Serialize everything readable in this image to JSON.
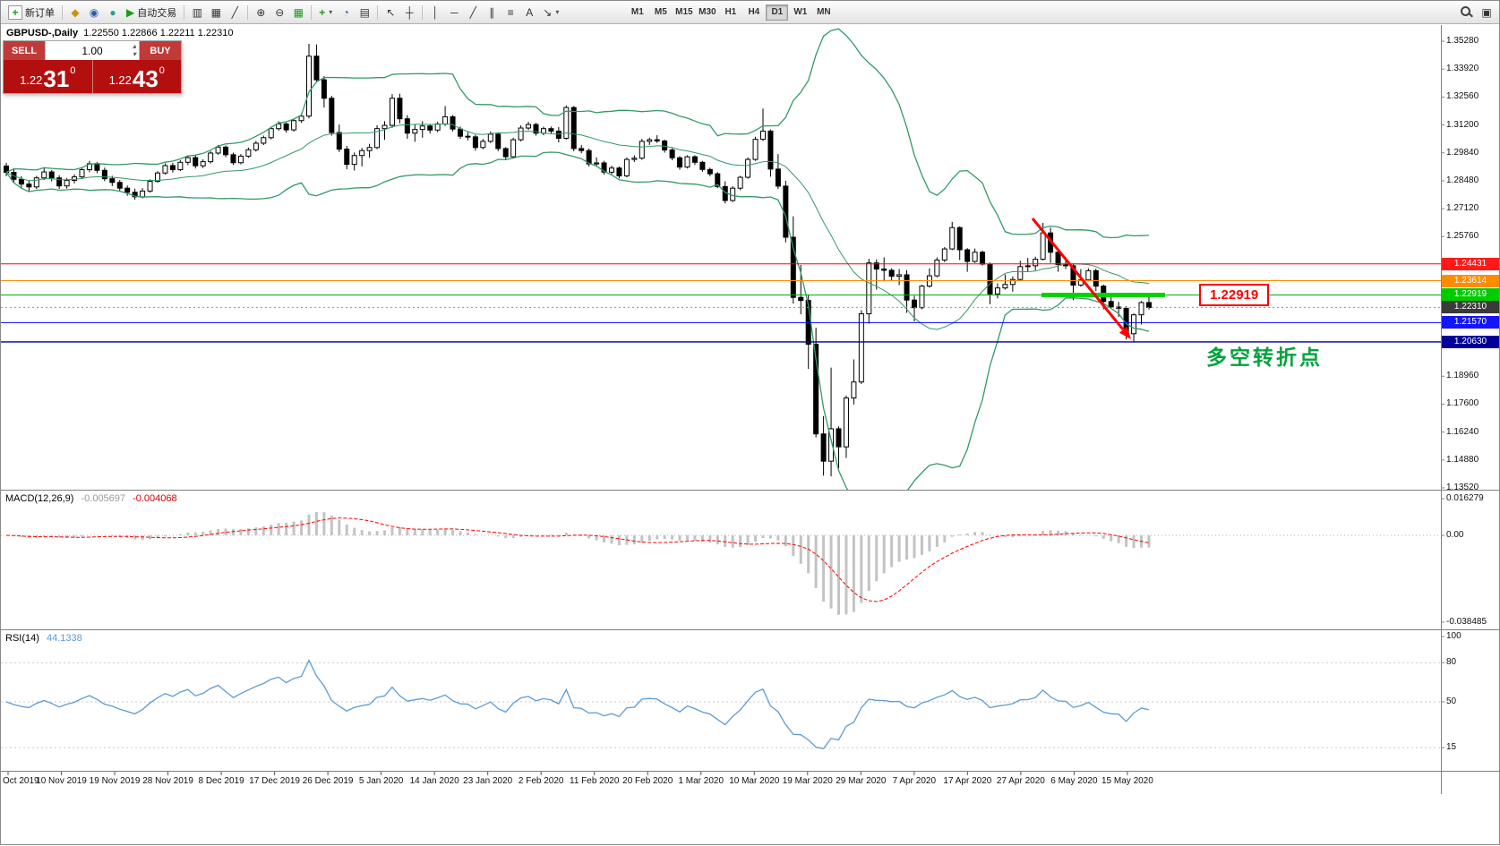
{
  "toolbar": {
    "new_order_label": "新订单",
    "autotrading_label": "自动交易",
    "timeframes": [
      "M1",
      "M5",
      "M15",
      "M30",
      "H1",
      "H4",
      "D1",
      "W1",
      "MN"
    ],
    "active_timeframe": "D1"
  },
  "icons": {
    "new_order": "+",
    "market_watch": "◆",
    "data_window": "◉",
    "navigator": "●",
    "autotrading_play": "▶",
    "bar_chart": "▥",
    "candle_chart": "▦",
    "line_chart": "╱",
    "zoom_in": "⊕",
    "zoom_out": "⊖",
    "tile_windows": "▦",
    "indicators": "+",
    "periods": "◔",
    "templates": "▤",
    "cursor": "↖",
    "crosshair": "┼",
    "vline": "│",
    "hline": "─",
    "trendline": "╱",
    "channel": "∥",
    "fibonacci": "≡",
    "text_tool": "A",
    "arrows_tool": "↘",
    "dropdown": "▾",
    "panel_toggle": "▣",
    "volume_up": "▴",
    "volume_down": "▾"
  },
  "trade_panel": {
    "sell_label": "SELL",
    "buy_label": "BUY",
    "volume": "1.00",
    "sell_base": "1.22",
    "sell_pips": "31",
    "sell_point": "0",
    "buy_base": "1.22",
    "buy_pips": "43",
    "buy_point": "0"
  },
  "chart_header": {
    "symbol_period": "GBPUSD-,Daily",
    "ohlc": "1.22550 1.22866 1.22211 1.22310"
  },
  "macd_panel": {
    "name": "MACD(12,26,9)",
    "main_value": "-0.005697",
    "signal_value": "-0.004068"
  },
  "rsi_panel": {
    "name": "RSI(14)",
    "value": "44.1338"
  },
  "annotations": {
    "callout_text": "1.22919",
    "note_text": "多空转折点"
  },
  "chart_data": {
    "type": "candlestick",
    "symbol": "GBPUSD",
    "period": "Daily",
    "candle_up_color": "#ffffff",
    "candle_down_color": "#000000",
    "price_ticks": [
      {
        "t": "1.35280"
      },
      {
        "t": "1.33920"
      },
      {
        "t": "1.32560"
      },
      {
        "t": "1.31200"
      },
      {
        "t": "1.29840"
      },
      {
        "t": "1.28480"
      },
      {
        "t": "1.27120"
      },
      {
        "t": "1.25760"
      },
      {
        "t": "1.18960"
      },
      {
        "t": "1.17600"
      },
      {
        "t": "1.16240"
      },
      {
        "t": "1.14880"
      },
      {
        "t": "1.13520"
      }
    ],
    "levels": [
      {
        "price": 1.24431,
        "text": "1.24431",
        "color": "#ff0000",
        "bg": "#ff1a1a",
        "style": "solid",
        "width": 1
      },
      {
        "price": 1.23614,
        "text": "1.23614",
        "color": "#ff8c00",
        "bg": "#ff8c00",
        "style": "solid",
        "width": 1
      },
      {
        "price": 1.22919,
        "text": "1.22919",
        "color": "#00b300",
        "bg": "#00cc00",
        "style": "solid",
        "width": 1
      },
      {
        "price": 1.2231,
        "text": "1.22310",
        "color": "#909090",
        "bg": "#3a3a3a",
        "style": "dot",
        "width": 1
      },
      {
        "price": 1.2157,
        "text": "1.21570",
        "color": "#0000ff",
        "bg": "#1414ff",
        "style": "solid",
        "width": 1
      },
      {
        "price": 1.2063,
        "text": "1.20630",
        "color": "#000080",
        "bg": "#000099",
        "style": "solid",
        "width": 1.4
      }
    ],
    "indicators": {
      "bollinger": {
        "period": 20,
        "deviation": 2,
        "color": "#339966"
      },
      "macd": {
        "fast": 12,
        "slow": 26,
        "signal": 9,
        "histogram_color": "#c3c3c3",
        "signal_color": "#ff0000",
        "scale_ticks": [
          {
            "v": 0.016279,
            "t": "0.016279"
          },
          {
            "v": 0,
            "t": "0.00"
          },
          {
            "v": -0.038485,
            "t": "-0.038485"
          }
        ]
      },
      "rsi": {
        "period": 14,
        "color": "#5b9bd5",
        "scale_ticks": [
          {
            "v": 100,
            "t": "100"
          },
          {
            "v": 80,
            "t": "80"
          },
          {
            "v": 50,
            "t": "50"
          },
          {
            "v": 15,
            "t": "15"
          }
        ],
        "levels": [
          80,
          50,
          15
        ]
      }
    },
    "annotations": {
      "arrow": {
        "color": "#ff0000"
      },
      "support_segment": {
        "price": 1.22919,
        "color": "#00d400"
      },
      "note_color": "#00a33c",
      "callout_color": "#ff0000"
    },
    "time_labels": [
      "Oct 2019",
      "10 Nov 2019",
      "19 Nov 2019",
      "28 Nov 2019",
      "8 Dec 2019",
      "17 Dec 2019",
      "26 Dec 2019",
      "5 Jan 2020",
      "14 Jan 2020",
      "23 Jan 2020",
      "2 Feb 2020",
      "11 Feb 2020",
      "20 Feb 2020",
      "1 Mar 2020",
      "10 Mar 2020",
      "19 Mar 2020",
      "29 Mar 2020",
      "7 Apr 2020",
      "17 Apr 2020",
      "27 Apr 2020",
      "6 May 2020",
      "15 May 2020"
    ],
    "ohlc": [
      [
        1.292,
        1.2935,
        1.287,
        1.2889
      ],
      [
        1.2889,
        1.2905,
        1.284,
        1.2855
      ],
      [
        1.2855,
        1.287,
        1.2815,
        1.2832
      ],
      [
        1.2832,
        1.285,
        1.2795,
        1.2818
      ],
      [
        1.2818,
        1.2872,
        1.2808,
        1.2862
      ],
      [
        1.2862,
        1.291,
        1.2852,
        1.2891
      ],
      [
        1.2891,
        1.29,
        1.2845,
        1.2862
      ],
      [
        1.2862,
        1.2875,
        1.2808,
        1.2823
      ],
      [
        1.2823,
        1.2862,
        1.281,
        1.285
      ],
      [
        1.285,
        1.288,
        1.2835,
        1.2867
      ],
      [
        1.2867,
        1.2915,
        1.2858,
        1.2902
      ],
      [
        1.2902,
        1.2945,
        1.289,
        1.2931
      ],
      [
        1.2931,
        1.294,
        1.2885,
        1.2899
      ],
      [
        1.2899,
        1.2912,
        1.2846,
        1.2858
      ],
      [
        1.2858,
        1.2872,
        1.2822,
        1.284
      ],
      [
        1.284,
        1.2852,
        1.2795,
        1.2812
      ],
      [
        1.2812,
        1.2825,
        1.2775,
        1.2792
      ],
      [
        1.2792,
        1.281,
        1.2756,
        1.277
      ],
      [
        1.277,
        1.2812,
        1.2762,
        1.2798
      ],
      [
        1.2798,
        1.2855,
        1.279,
        1.2845
      ],
      [
        1.2845,
        1.2895,
        1.2838,
        1.2886
      ],
      [
        1.2886,
        1.2932,
        1.2878,
        1.2922
      ],
      [
        1.2922,
        1.2935,
        1.2888,
        1.2902
      ],
      [
        1.2902,
        1.2948,
        1.2895,
        1.2938
      ],
      [
        1.2938,
        1.2972,
        1.2925,
        1.2961
      ],
      [
        1.2961,
        1.297,
        1.2908,
        1.2921
      ],
      [
        1.2921,
        1.2952,
        1.291,
        1.2941
      ],
      [
        1.2941,
        1.2992,
        1.2932,
        1.2983
      ],
      [
        1.2983,
        1.3022,
        1.2975,
        1.3012
      ],
      [
        1.3012,
        1.302,
        1.2962,
        1.2975
      ],
      [
        1.2975,
        1.2985,
        1.2925,
        1.2936
      ],
      [
        1.2936,
        1.2978,
        1.2928,
        1.2968
      ],
      [
        1.2968,
        1.301,
        1.296,
        1.2999
      ],
      [
        1.2999,
        1.3042,
        1.299,
        1.3031
      ],
      [
        1.3031,
        1.3068,
        1.3022,
        1.3058
      ],
      [
        1.3058,
        1.3112,
        1.305,
        1.3102
      ],
      [
        1.3102,
        1.3138,
        1.3092,
        1.3125
      ],
      [
        1.3125,
        1.3132,
        1.3082,
        1.3096
      ],
      [
        1.3096,
        1.315,
        1.3088,
        1.3141
      ],
      [
        1.3141,
        1.3172,
        1.313,
        1.3163
      ],
      [
        1.3163,
        1.3515,
        1.3152,
        1.3455
      ],
      [
        1.3455,
        1.3512,
        1.3328,
        1.334
      ],
      [
        1.334,
        1.3358,
        1.3205,
        1.325
      ],
      [
        1.325,
        1.3262,
        1.3068,
        1.3083
      ],
      [
        1.3083,
        1.3122,
        1.2988,
        1.3002
      ],
      [
        1.3002,
        1.3018,
        1.2904,
        1.2928
      ],
      [
        1.2928,
        1.2986,
        1.2898,
        1.2971
      ],
      [
        1.2971,
        1.3008,
        1.2918,
        1.2995
      ],
      [
        1.2995,
        1.3028,
        1.296,
        1.301
      ],
      [
        1.301,
        1.3118,
        1.3002,
        1.3102
      ],
      [
        1.3102,
        1.3138,
        1.3048,
        1.3118
      ],
      [
        1.3118,
        1.327,
        1.3106,
        1.325
      ],
      [
        1.325,
        1.3272,
        1.3128,
        1.315
      ],
      [
        1.315,
        1.3168,
        1.3052,
        1.308
      ],
      [
        1.308,
        1.3122,
        1.3038,
        1.3098
      ],
      [
        1.3098,
        1.3138,
        1.3058,
        1.3115
      ],
      [
        1.3115,
        1.3125,
        1.3078,
        1.3095
      ],
      [
        1.3095,
        1.3135,
        1.3085,
        1.3125
      ],
      [
        1.3125,
        1.3212,
        1.3115,
        1.316
      ],
      [
        1.316,
        1.3168,
        1.3088,
        1.31
      ],
      [
        1.31,
        1.3112,
        1.3052,
        1.3065
      ],
      [
        1.3065,
        1.3085,
        1.3045,
        1.3062
      ],
      [
        1.3062,
        1.3072,
        1.2995,
        1.301
      ],
      [
        1.301,
        1.3052,
        1.3002,
        1.304
      ],
      [
        1.304,
        1.3088,
        1.3032,
        1.3075
      ],
      [
        1.3075,
        1.3082,
        1.2992,
        1.3005
      ],
      [
        1.3005,
        1.3012,
        1.2952,
        1.2965
      ],
      [
        1.2965,
        1.3058,
        1.2958,
        1.3048
      ],
      [
        1.3048,
        1.3118,
        1.304,
        1.3105
      ],
      [
        1.3105,
        1.3135,
        1.3095,
        1.3122
      ],
      [
        1.3122,
        1.313,
        1.3068,
        1.308
      ],
      [
        1.308,
        1.3112,
        1.307,
        1.3102
      ],
      [
        1.3102,
        1.3112,
        1.3075,
        1.309
      ],
      [
        1.309,
        1.311,
        1.3035,
        1.3055
      ],
      [
        1.3055,
        1.3215,
        1.3048,
        1.3205
      ],
      [
        1.3205,
        1.3212,
        1.2992,
        1.3005
      ],
      [
        1.3005,
        1.3022,
        1.2982,
        1.2995
      ],
      [
        1.2995,
        1.3005,
        1.2918,
        1.293
      ],
      [
        1.293,
        1.2962,
        1.292,
        1.2935
      ],
      [
        1.2935,
        1.2945,
        1.2878,
        1.289
      ],
      [
        1.289,
        1.2922,
        1.288,
        1.291
      ],
      [
        1.291,
        1.2918,
        1.286,
        1.2872
      ],
      [
        1.2872,
        1.2962,
        1.2865,
        1.2952
      ],
      [
        1.2952,
        1.2972,
        1.294,
        1.2958
      ],
      [
        1.2958,
        1.3052,
        1.295,
        1.304
      ],
      [
        1.304,
        1.3058,
        1.3022,
        1.3048
      ],
      [
        1.3048,
        1.307,
        1.3032,
        1.3042
      ],
      [
        1.3042,
        1.3048,
        1.2985,
        1.2998
      ],
      [
        1.2998,
        1.3008,
        1.2948,
        1.296
      ],
      [
        1.296,
        1.2968,
        1.2902,
        1.2915
      ],
      [
        1.2915,
        1.2972,
        1.2908,
        1.2965
      ],
      [
        1.2965,
        1.2972,
        1.2925,
        1.2938
      ],
      [
        1.2938,
        1.2945,
        1.2892,
        1.2903
      ],
      [
        1.2903,
        1.2912,
        1.287,
        1.2882
      ],
      [
        1.2882,
        1.289,
        1.2812,
        1.282
      ],
      [
        1.282,
        1.2845,
        1.2738,
        1.2752
      ],
      [
        1.2752,
        1.2822,
        1.2745,
        1.2812
      ],
      [
        1.2812,
        1.2872,
        1.2802,
        1.2865
      ],
      [
        1.2865,
        1.2962,
        1.2858,
        1.2952
      ],
      [
        1.2952,
        1.3062,
        1.2945,
        1.305
      ],
      [
        1.305,
        1.32,
        1.3042,
        1.309
      ],
      [
        1.309,
        1.3098,
        1.2868,
        1.2905
      ],
      [
        1.2905,
        1.2978,
        1.2808,
        1.2822
      ],
      [
        1.2822,
        1.2848,
        1.2548,
        1.2573
      ],
      [
        1.2573,
        1.2675,
        1.225,
        1.228
      ],
      [
        1.228,
        1.2438,
        1.2198,
        1.2265
      ],
      [
        1.2265,
        1.2292,
        1.1932,
        1.2052
      ],
      [
        1.2052,
        1.2132,
        1.1598,
        1.1615
      ],
      [
        1.1615,
        1.1702,
        1.1412,
        1.1482
      ],
      [
        1.1482,
        1.1938,
        1.1408,
        1.164
      ],
      [
        1.164,
        1.1652,
        1.1448,
        1.1552
      ],
      [
        1.1552,
        1.1802,
        1.1498,
        1.179
      ],
      [
        1.179,
        1.1978,
        1.1758,
        1.1868
      ],
      [
        1.1868,
        1.2218,
        1.1858,
        1.22
      ],
      [
        1.22,
        1.2468,
        1.2152,
        1.2448
      ],
      [
        1.2448,
        1.2465,
        1.2318,
        1.2418
      ],
      [
        1.2418,
        1.2475,
        1.2358,
        1.2412
      ],
      [
        1.2412,
        1.2422,
        1.236,
        1.2383
      ],
      [
        1.2383,
        1.2418,
        1.234,
        1.239
      ],
      [
        1.239,
        1.2413,
        1.2205,
        1.2267
      ],
      [
        1.2267,
        1.2288,
        1.2163,
        1.223
      ],
      [
        1.223,
        1.2342,
        1.2222,
        1.2335
      ],
      [
        1.2335,
        1.2422,
        1.2328,
        1.2385
      ],
      [
        1.2385,
        1.2475,
        1.2378,
        1.2462
      ],
      [
        1.2462,
        1.2525,
        1.2452,
        1.2516
      ],
      [
        1.2516,
        1.2648,
        1.251,
        1.262
      ],
      [
        1.262,
        1.2626,
        1.2462,
        1.2512
      ],
      [
        1.2512,
        1.252,
        1.2405,
        1.2455
      ],
      [
        1.2455,
        1.2518,
        1.2448,
        1.25
      ],
      [
        1.25,
        1.2508,
        1.2435,
        1.2442
      ],
      [
        1.2442,
        1.245,
        1.2247,
        1.2297
      ],
      [
        1.2297,
        1.2348,
        1.2275,
        1.2326
      ],
      [
        1.2326,
        1.2392,
        1.2318,
        1.2343
      ],
      [
        1.2343,
        1.2382,
        1.2308,
        1.2367
      ],
      [
        1.2367,
        1.2458,
        1.236,
        1.243
      ],
      [
        1.243,
        1.2472,
        1.2405,
        1.2434
      ],
      [
        1.2434,
        1.2478,
        1.2412,
        1.2466
      ],
      [
        1.2466,
        1.2643,
        1.246,
        1.2594
      ],
      [
        1.2594,
        1.262,
        1.2448,
        1.25
      ],
      [
        1.25,
        1.2508,
        1.2405,
        1.244
      ],
      [
        1.244,
        1.2465,
        1.2418,
        1.2434
      ],
      [
        1.2434,
        1.2445,
        1.2266,
        1.234
      ],
      [
        1.234,
        1.2418,
        1.2332,
        1.2365
      ],
      [
        1.2365,
        1.2422,
        1.2358,
        1.241
      ],
      [
        1.241,
        1.242,
        1.231,
        1.2335
      ],
      [
        1.2335,
        1.2342,
        1.2222,
        1.226
      ],
      [
        1.226,
        1.2302,
        1.2225,
        1.2233
      ],
      [
        1.2233,
        1.2258,
        1.2185,
        1.2227
      ],
      [
        1.2227,
        1.2237,
        1.2075,
        1.2103
      ],
      [
        1.2103,
        1.2202,
        1.2063,
        1.2195
      ],
      [
        1.2195,
        1.2262,
        1.2148,
        1.2255
      ],
      [
        1.2255,
        1.22866,
        1.22211,
        1.2231
      ]
    ]
  }
}
